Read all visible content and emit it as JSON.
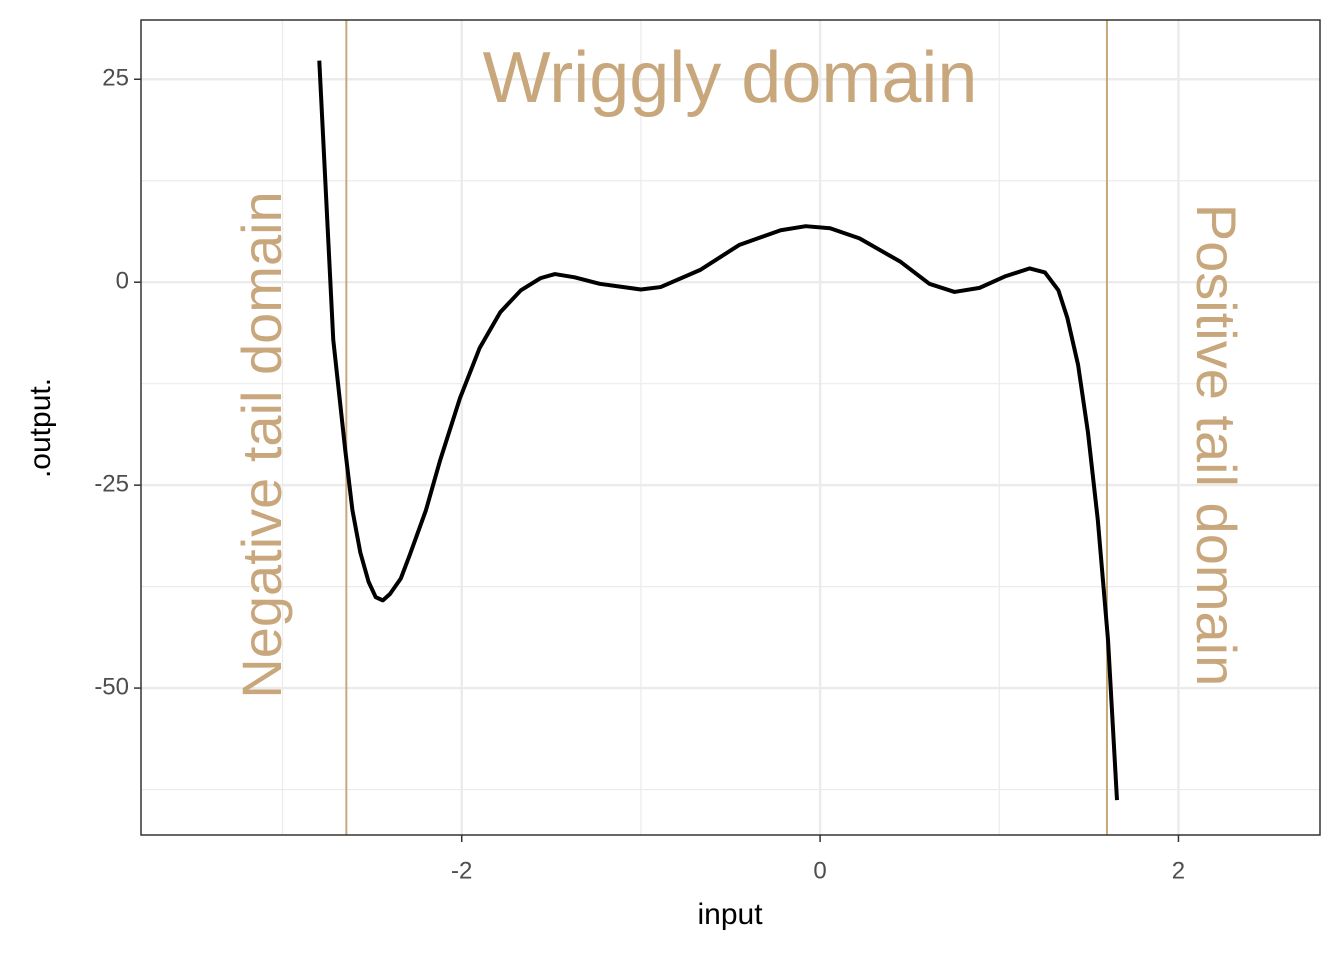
{
  "chart_data": {
    "type": "line",
    "x_label": "input",
    "y_label": ".output.",
    "xlim": [
      -3.79,
      2.79
    ],
    "ylim": [
      -68.1,
      32.3
    ],
    "xticks": [
      -2,
      0,
      2
    ],
    "yticks": [
      25,
      0,
      -25,
      -50
    ],
    "x_minor_grid": [
      -3,
      -1,
      1
    ],
    "y_minor_grid": [
      12.5,
      -12.5,
      -37.5,
      -62.5
    ],
    "grid": true,
    "vlines": [
      -2.644,
      1.601
    ],
    "annotation_color": "#c9a77c",
    "annotations": [
      "Wriggly domain",
      "Negative tail domain",
      "Positive tail domain"
    ],
    "series": [
      {
        "color": "#000000",
        "x": [
          -2.795,
          -2.717,
          -2.65,
          -2.61,
          -2.566,
          -2.52,
          -2.48,
          -2.44,
          -2.4,
          -2.34,
          -2.29,
          -2.2,
          -2.12,
          -2.01,
          -1.9,
          -1.785,
          -1.67,
          -1.56,
          -1.48,
          -1.37,
          -1.23,
          -1.0,
          -0.89,
          -0.67,
          -0.45,
          -0.22,
          -0.08,
          0.056,
          0.22,
          0.45,
          0.61,
          0.75,
          0.89,
          1.03,
          1.17,
          1.255,
          1.33,
          1.38,
          1.44,
          1.495,
          1.55,
          1.607,
          1.657
        ],
        "values": [
          27.3,
          -7.1,
          -20.7,
          -28.1,
          -33.3,
          -36.9,
          -38.8,
          -39.2,
          -38.4,
          -36.5,
          -33.6,
          -28.1,
          -21.9,
          -14.3,
          -8.1,
          -3.7,
          -1.0,
          0.5,
          1.0,
          0.6,
          -0.2,
          -0.9,
          -0.6,
          1.5,
          4.6,
          6.4,
          6.9,
          6.65,
          5.4,
          2.5,
          -0.2,
          -1.2,
          -0.7,
          0.7,
          1.7,
          1.2,
          -1.0,
          -4.4,
          -10.2,
          -18.5,
          -29.3,
          -44.1,
          -63.8
        ]
      }
    ]
  }
}
